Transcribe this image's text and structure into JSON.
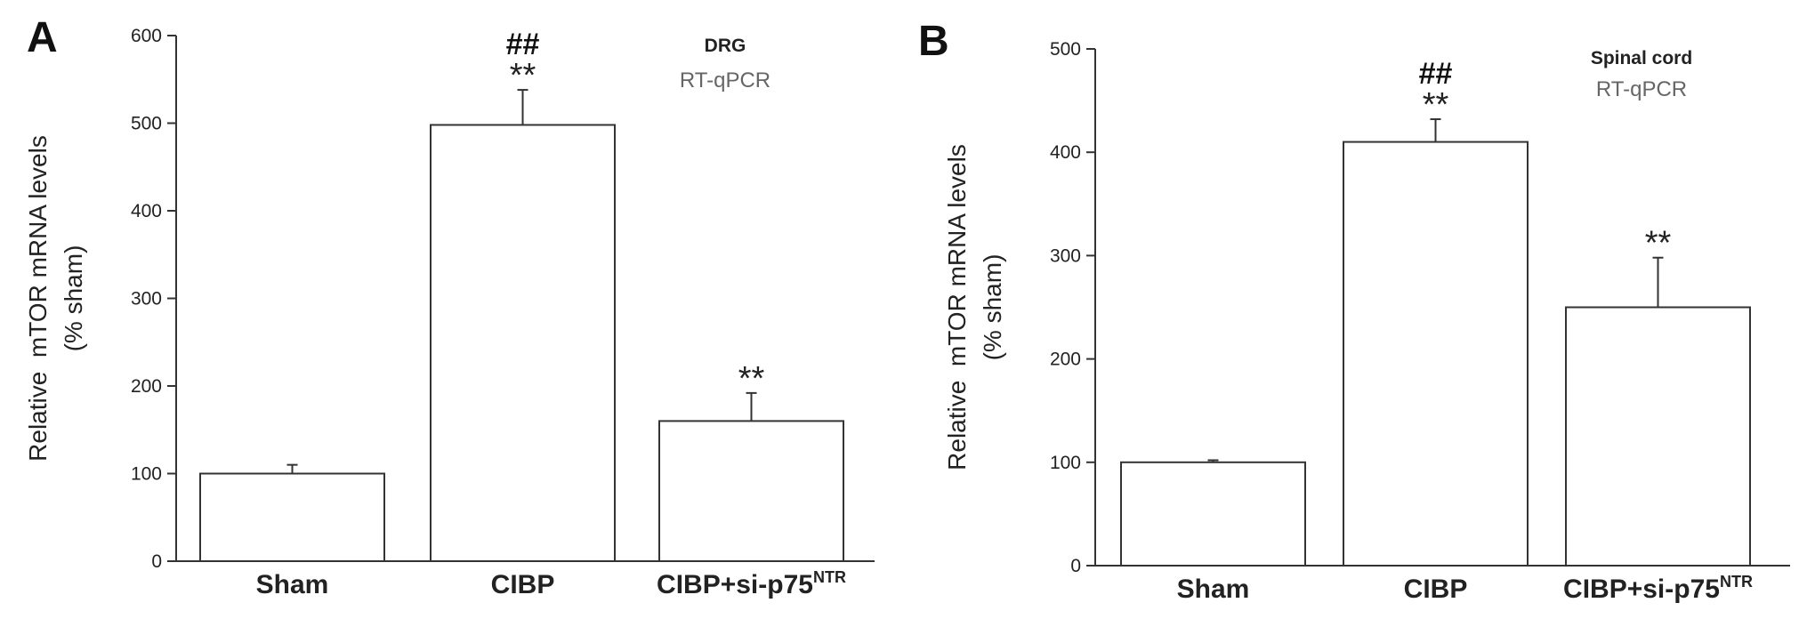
{
  "chart_data": [
    {
      "type": "bar",
      "panel": "A",
      "annotation_line1": "DRG",
      "annotation_line2": "RT-qPCR",
      "ylabel_line1": "Relative  mTOR mRNA levels",
      "ylabel_line2": "(% sham)",
      "ylim": [
        0,
        600
      ],
      "yticks": [
        0,
        100,
        200,
        300,
        400,
        500,
        600
      ],
      "grid": false,
      "categories": [
        {
          "label": "Sham",
          "sup": ""
        },
        {
          "label": "CIBP",
          "sup": ""
        },
        {
          "label": "CIBP+si-p75",
          "sup": "NTR"
        }
      ],
      "values": [
        100,
        498,
        160
      ],
      "errors": [
        10,
        40,
        32
      ],
      "significance": [
        "",
        "**",
        "**"
      ],
      "hash_marks": [
        "",
        "##",
        ""
      ]
    },
    {
      "type": "bar",
      "panel": "B",
      "annotation_line1": "Spinal cord",
      "annotation_line2": "RT-qPCR",
      "ylabel_line1": "Relative  mTOR mRNA levels",
      "ylabel_line2": "(% sham)",
      "ylim": [
        0,
        500
      ],
      "yticks": [
        0,
        100,
        200,
        300,
        400,
        500
      ],
      "grid": false,
      "categories": [
        {
          "label": "Sham",
          "sup": ""
        },
        {
          "label": "CIBP",
          "sup": ""
        },
        {
          "label": "CIBP+si-p75",
          "sup": "NTR"
        }
      ],
      "values": [
        100,
        410,
        250
      ],
      "errors": [
        2,
        22,
        48
      ],
      "significance": [
        "",
        "**",
        "**"
      ],
      "hash_marks": [
        "",
        "##",
        ""
      ]
    }
  ]
}
